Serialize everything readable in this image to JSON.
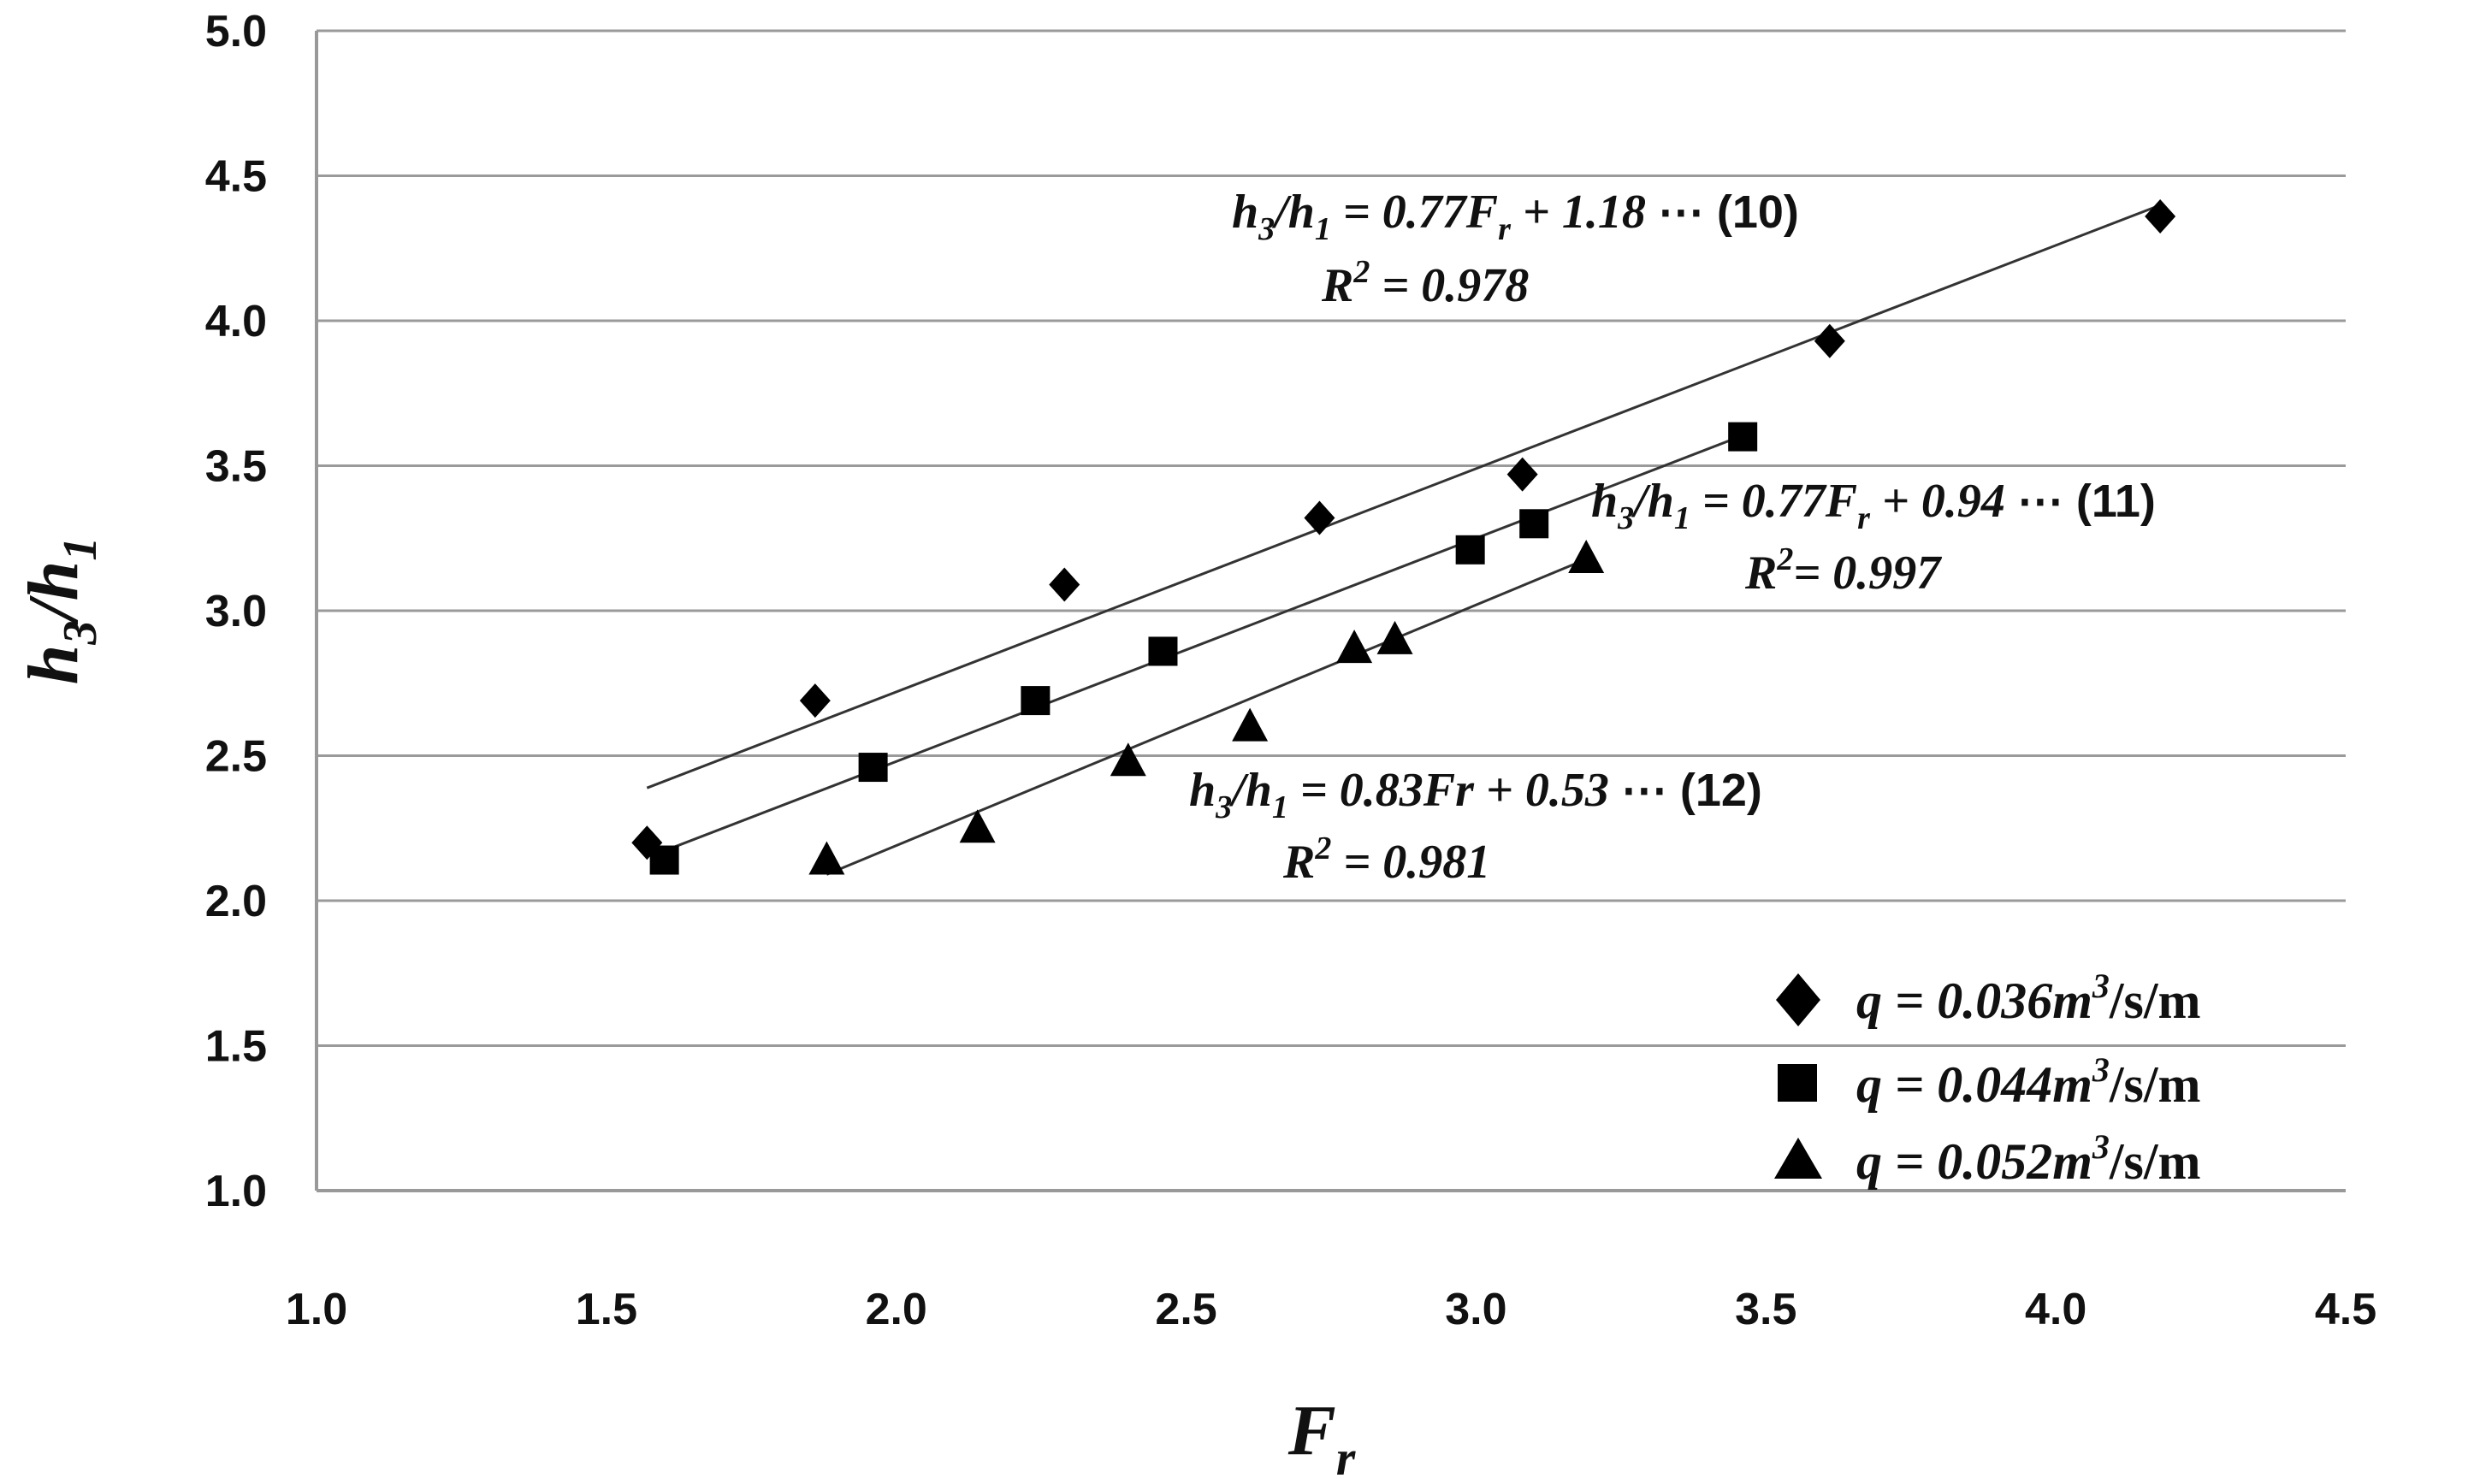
{
  "chart_data": {
    "type": "scatter",
    "xlabel": "F_r",
    "ylabel": "h3/h1",
    "xlim": [
      1.0,
      4.5
    ],
    "ylim": [
      1.0,
      5.0
    ],
    "x_ticks": [
      "1.0",
      "1.5",
      "2.0",
      "2.5",
      "3.0",
      "3.5",
      "4.0",
      "4.5"
    ],
    "y_ticks": [
      "1.0",
      "1.5",
      "2.0",
      "2.5",
      "3.0",
      "3.5",
      "4.0",
      "4.5",
      "5.0"
    ],
    "grid": "horizontal",
    "legend_position": "bottom-right",
    "series": [
      {
        "name": "q = 0.036m³/s/m",
        "marker": "diamond",
        "points": [
          [
            1.57,
            2.2
          ],
          [
            1.86,
            2.69
          ],
          [
            2.29,
            3.09
          ],
          [
            2.73,
            3.32
          ],
          [
            3.08,
            3.47
          ],
          [
            3.61,
            3.93
          ],
          [
            4.18,
            4.36
          ]
        ],
        "fit": {
          "slope": 0.77,
          "intercept": 1.18,
          "x_range": [
            1.57,
            4.18
          ]
        },
        "equation": "h₃/h₁ = 0.77Fᵣ + 1.18",
        "r2": "R² = 0.978",
        "tag": "⋯ (10)"
      },
      {
        "name": "q = 0.044m³/s/m",
        "marker": "square",
        "points": [
          [
            1.6,
            2.14
          ],
          [
            1.96,
            2.46
          ],
          [
            2.24,
            2.69
          ],
          [
            2.46,
            2.86
          ],
          [
            2.99,
            3.21
          ],
          [
            3.1,
            3.3
          ],
          [
            3.46,
            3.6
          ]
        ],
        "fit": {
          "slope": 0.77,
          "intercept": 0.94,
          "x_range": [
            1.6,
            3.46
          ]
        },
        "equation": "h₃/h₁ = 0.77Fᵣ + 0.94",
        "r2": "R²= 0.997",
        "tag": "⋯ (11)"
      },
      {
        "name": "q = 0.052m³/s/m",
        "marker": "triangle",
        "points": [
          [
            1.88,
            2.14
          ],
          [
            2.14,
            2.25
          ],
          [
            2.4,
            2.48
          ],
          [
            2.61,
            2.6
          ],
          [
            2.79,
            2.87
          ],
          [
            2.86,
            2.9
          ],
          [
            3.19,
            3.18
          ]
        ],
        "fit": {
          "slope": 0.83,
          "intercept": 0.53,
          "x_range": [
            1.88,
            3.19
          ]
        },
        "equation": "h₃/h₁ = 0.83Fr + 0.53",
        "r2": "R² = 0.981",
        "tag": "⋯ (12)"
      }
    ]
  }
}
